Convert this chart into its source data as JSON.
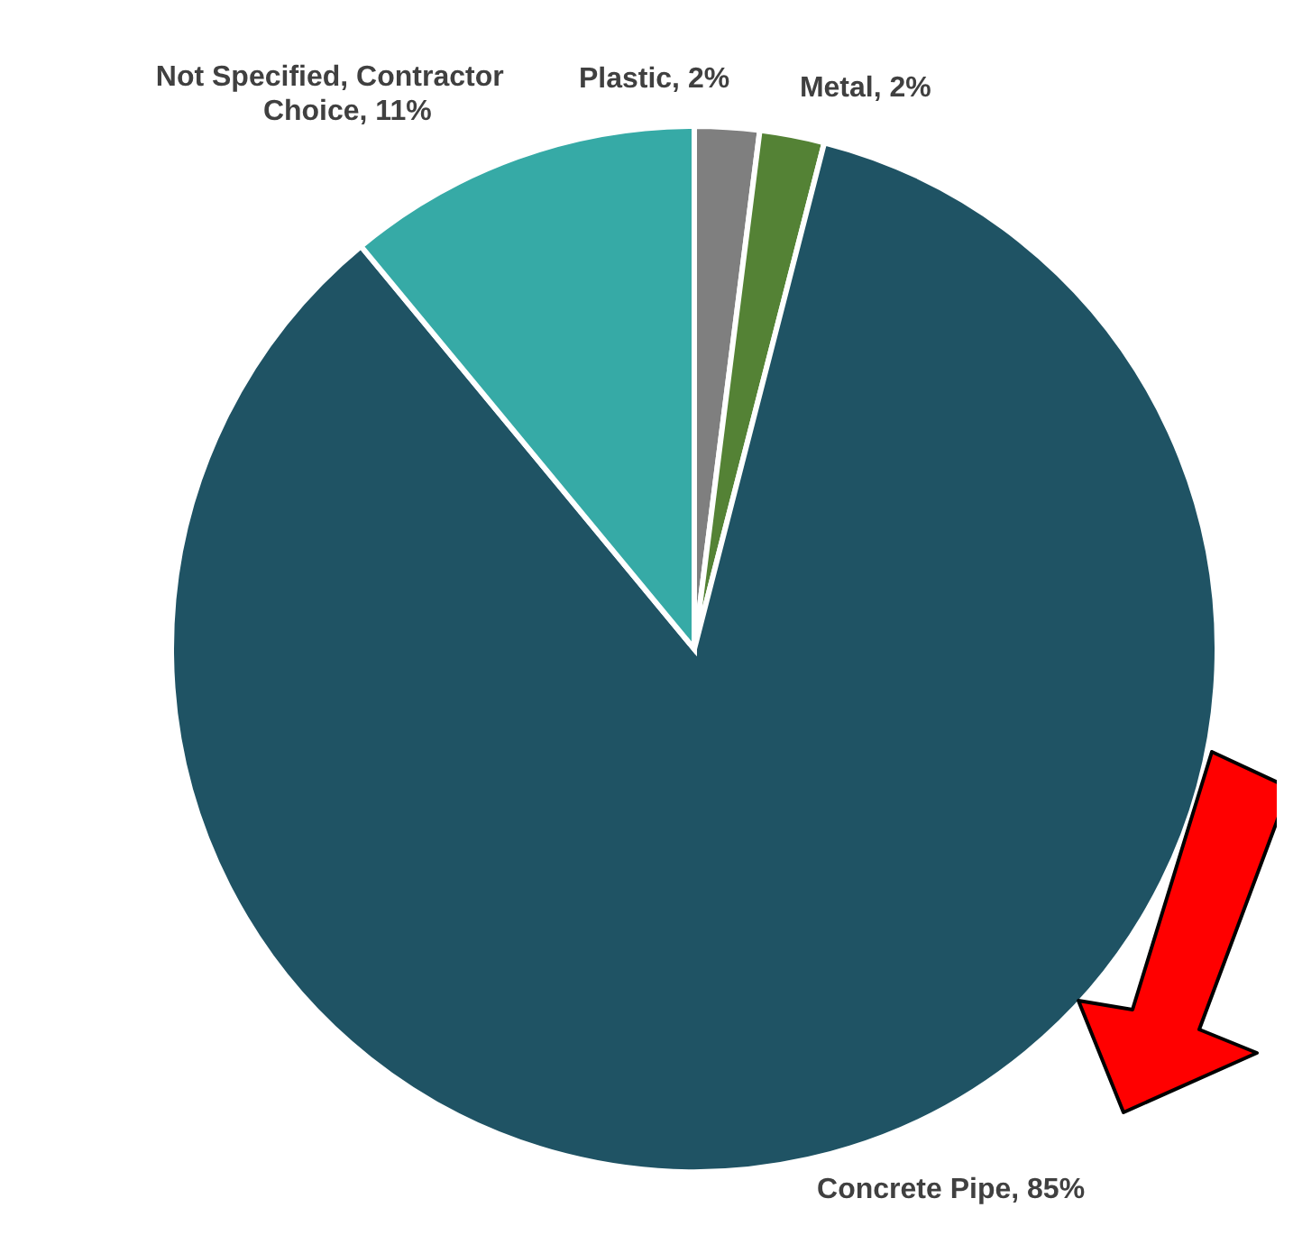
{
  "chart_data": {
    "type": "pie",
    "categories": [
      "Plastic, 2%",
      "Metal, 2%",
      "Concrete Pipe, 85%",
      "Not Specified, Contractor Choice, 11%"
    ],
    "values": [
      2,
      2,
      85,
      11
    ],
    "colors": [
      "#7f7f7f",
      "#548235",
      "#1f5364",
      "#36aaa6"
    ],
    "legend": false
  }
}
